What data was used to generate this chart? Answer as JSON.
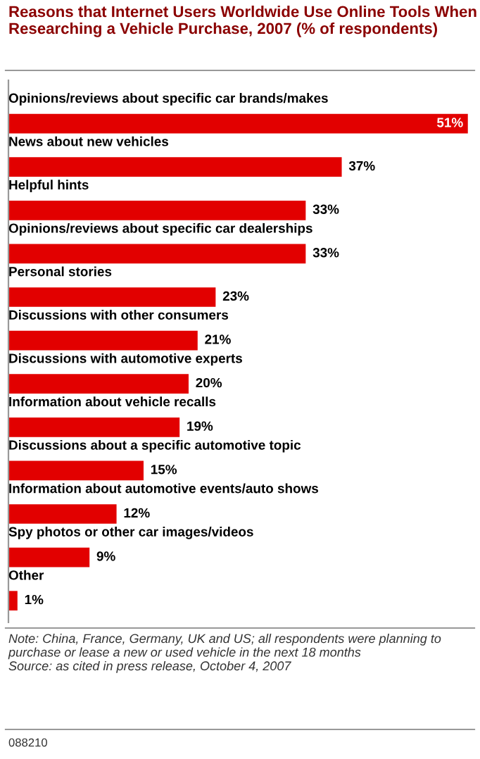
{
  "chart_data": {
    "type": "bar",
    "orientation": "horizontal",
    "title": "Reasons that Internet Users Worldwide Use Online Tools When Researching a Vehicle Purchase, 2007 (% of respondents)",
    "categories": [
      "Opinions/reviews about specific car brands/makes",
      "News about new vehicles",
      "Helpful hints",
      "Opinions/reviews about specific car dealerships",
      "Personal stories",
      "Discussions with other consumers",
      "Discussions with automotive experts",
      "Information about vehicle recalls",
      "Discussions about a specific automotive topic",
      "Information about automotive events/auto shows",
      "Spy photos or other car images/videos",
      "Other"
    ],
    "values": [
      51,
      37,
      33,
      33,
      23,
      21,
      20,
      19,
      15,
      12,
      9,
      1
    ],
    "value_labels": [
      "51%",
      "37%",
      "33%",
      "33%",
      "23%",
      "21%",
      "20%",
      "19%",
      "15%",
      "12%",
      "9%",
      "1%"
    ],
    "color": "#e20000",
    "annotations": [
      "Note: China, France, Germany, UK and US; all respondents were planning to purchase or lease a new or used vehicle in the next 18 months",
      "Source: as cited in press release, October 4, 2007",
      "088210"
    ]
  }
}
